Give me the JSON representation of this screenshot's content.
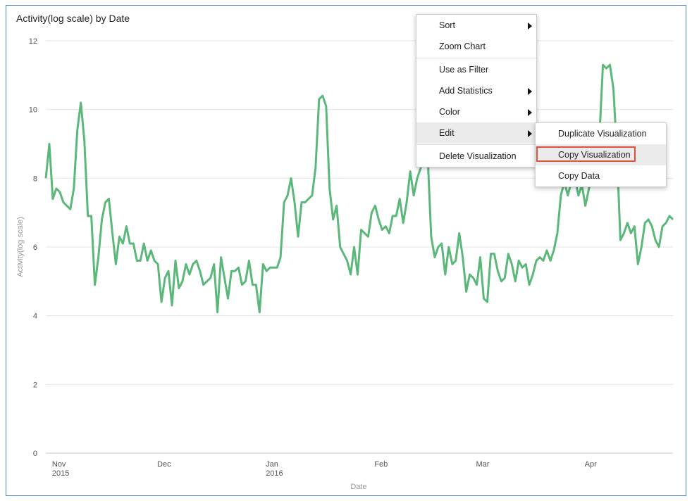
{
  "chart_data": {
    "type": "line",
    "title": "Activity(log scale) by Date",
    "xlabel": "Date",
    "ylabel": "Activity(log scale)",
    "ylim": [
      0,
      12
    ],
    "yticks": [
      "0",
      "2",
      "4",
      "6",
      "8",
      "10",
      "12"
    ],
    "xticks": [
      {
        "label": "Nov",
        "sub": "2015",
        "date": "2015-11-01"
      },
      {
        "label": "Dec",
        "sub": "",
        "date": "2015-12-01"
      },
      {
        "label": "Jan",
        "sub": "2016",
        "date": "2016-01-01"
      },
      {
        "label": "Feb",
        "sub": "",
        "date": "2016-02-01"
      },
      {
        "label": "Mar",
        "sub": "",
        "date": "2016-03-01"
      },
      {
        "label": "Apr",
        "sub": "",
        "date": "2016-04-01"
      }
    ],
    "grid": true,
    "series_color": "#5cb87a",
    "series": [
      {
        "start_date": "2015-10-28",
        "values": [
          8.0,
          9.0,
          7.4,
          7.7,
          7.6,
          7.3,
          7.2,
          7.1,
          7.7,
          9.4,
          10.2,
          9.1,
          6.9,
          6.9,
          4.9,
          5.7,
          6.8,
          7.3,
          7.4,
          6.4,
          5.5,
          6.3,
          6.1,
          6.6,
          6.1,
          6.1,
          5.6,
          5.6,
          6.1,
          5.6,
          5.9,
          5.6,
          5.5,
          4.4,
          5.1,
          5.3,
          4.3,
          5.6,
          4.8,
          5.0,
          5.5,
          5.2,
          5.5,
          5.6,
          5.3,
          4.9,
          5.0,
          5.1,
          5.5,
          4.1,
          5.7,
          5.1,
          4.5,
          5.3,
          5.3,
          5.4,
          4.9,
          5.0,
          5.6,
          4.9,
          4.9,
          4.1,
          5.5,
          5.3,
          5.4,
          5.4,
          5.4,
          5.7,
          7.3,
          7.5,
          8.0,
          7.3,
          6.3,
          7.3,
          7.3,
          7.4,
          7.5,
          8.3,
          10.3,
          10.4,
          10.1,
          7.7,
          6.8,
          7.2,
          6.0,
          5.8,
          5.6,
          5.2,
          6.0,
          5.2,
          6.5,
          6.4,
          6.3,
          7.0,
          7.2,
          6.8,
          6.5,
          6.6,
          6.4,
          6.9,
          6.9,
          7.4,
          6.7,
          7.3,
          8.2,
          7.5,
          8.0,
          8.3,
          8.5,
          8.6,
          6.3,
          5.7,
          6.0,
          6.1,
          5.2,
          6.0,
          5.5,
          5.6,
          6.4,
          5.7,
          4.7,
          5.2,
          5.1,
          4.9,
          5.7,
          4.5,
          4.4,
          5.8,
          5.8,
          5.3,
          5.0,
          5.1,
          5.8,
          5.5,
          5.0,
          5.6,
          5.4,
          5.5,
          4.9,
          5.2,
          5.6,
          5.7,
          5.6,
          5.9,
          5.6,
          5.9,
          6.4,
          7.5,
          7.9,
          7.5,
          7.9,
          8.0,
          7.5,
          7.8,
          7.2,
          7.7,
          8.0,
          9.0,
          9.2,
          11.3,
          11.2,
          11.3,
          10.6,
          8.8,
          6.2,
          6.4,
          6.7,
          6.4,
          6.6,
          5.5,
          6.0,
          6.7,
          6.8,
          6.6,
          6.2,
          6.0,
          6.6,
          6.7,
          6.9,
          6.8
        ]
      }
    ]
  },
  "context_menu": {
    "items": [
      {
        "label": "Sort",
        "has_submenu": true
      },
      {
        "label": "Zoom Chart",
        "has_submenu": false
      },
      {
        "label": "Use as Filter",
        "has_submenu": false
      },
      {
        "label": "Add Statistics",
        "has_submenu": true
      },
      {
        "label": "Color",
        "has_submenu": true
      },
      {
        "label": "Edit",
        "has_submenu": true,
        "active": true
      },
      {
        "label": "Delete Visualization",
        "has_submenu": false
      }
    ],
    "submenu": [
      {
        "label": "Duplicate Visualization"
      },
      {
        "label": "Copy Visualization",
        "highlighted": true
      },
      {
        "label": "Copy Data"
      }
    ],
    "highlight_color": "#e0533a"
  }
}
